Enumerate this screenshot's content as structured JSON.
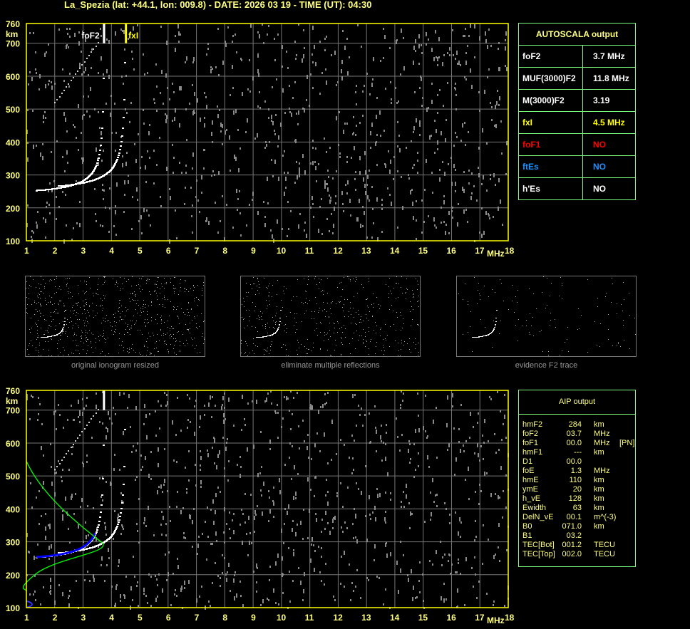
{
  "title": "La_Spezia (lat: +44.1, lon: 009.8) - DATE: 2026 03 19 - TIME (UT): 04:30",
  "chart_data": [
    {
      "type": "scatter",
      "xlabel": "MHz",
      "ylabel": "km",
      "xlim": [
        1,
        18
      ],
      "ylim": [
        100,
        760
      ],
      "xticks": [
        "1",
        "2",
        "3",
        "4",
        "5",
        "6",
        "7",
        "8",
        "9",
        "10",
        "11",
        "12",
        "13",
        "14",
        "15",
        "16",
        "17",
        "18"
      ],
      "yticks": [
        "100",
        "200",
        "300",
        "400",
        "500",
        "600",
        "700",
        "760"
      ],
      "grid": true,
      "markers": [
        {
          "label": "foF2",
          "x": 3.7,
          "color": "#ffffff"
        },
        {
          "label": "fxI",
          "x": 4.5,
          "color": "#ffff00"
        }
      ]
    },
    {
      "type": "scatter",
      "xlabel": "MHz",
      "ylabel": "km",
      "xlim": [
        1,
        18
      ],
      "ylim": [
        100,
        760
      ],
      "xticks": [
        "1",
        "2",
        "3",
        "4",
        "5",
        "6",
        "7",
        "8",
        "9",
        "10",
        "11",
        "12",
        "13",
        "14",
        "15",
        "16",
        "17",
        "18"
      ],
      "yticks": [
        "100",
        "200",
        "300",
        "400",
        "500",
        "600",
        "700",
        "760"
      ],
      "grid": true,
      "profile_color": "#00ff00",
      "fitted_trace_color": "#0000ff"
    }
  ],
  "thumbnails": [
    {
      "caption": "original ionogram resized"
    },
    {
      "caption": "eliminate multiple reflections"
    },
    {
      "caption": "evidence F2 trace"
    }
  ],
  "autoscala": {
    "title": "AUTOSCALA output",
    "rows": [
      {
        "label": "foF2",
        "value": "3.7 MHz",
        "color": "#ffffff"
      },
      {
        "label": "MUF(3000)F2",
        "value": "11.8 MHz",
        "color": "#ffffff"
      },
      {
        "label": "M(3000)F2",
        "value": "3.19",
        "color": "#ffffff"
      },
      {
        "label": "fxI",
        "value": "4.5 MHz",
        "color": "#ffff00"
      },
      {
        "label": "foF1",
        "value": "NO",
        "color": "#ff0000"
      },
      {
        "label": "ftEs",
        "value": "NO",
        "color": "#1e90ff"
      },
      {
        "label": "h'Es",
        "value": "NO",
        "color": "#ffffff"
      }
    ]
  },
  "aip": {
    "title": "AIP output",
    "rows": [
      [
        "hmF2",
        "284",
        "km"
      ],
      [
        "foF2",
        "03.7",
        "MHz"
      ],
      [
        "foF1",
        "00.0",
        "MHz",
        "[PN]"
      ],
      [
        "hmF1",
        "---",
        "km"
      ],
      [
        "D1",
        "00.0",
        ""
      ],
      [
        "foE",
        "1.3",
        "MHz"
      ],
      [
        "hmE",
        "110",
        "km"
      ],
      [
        "ymE",
        "20",
        "km"
      ],
      [
        "h_vE",
        "128",
        "km"
      ],
      [
        "Ewidth",
        "63",
        "km"
      ],
      [
        "DelN_vE",
        "00.1",
        "m^(-3)"
      ],
      [
        "B0",
        "071.0",
        "km"
      ],
      [
        "B1",
        "03.2",
        ""
      ],
      [
        "TEC[Bot]",
        "001.2",
        "TECU"
      ],
      [
        "TEC[Top]",
        "002.0",
        "TECU"
      ]
    ]
  }
}
